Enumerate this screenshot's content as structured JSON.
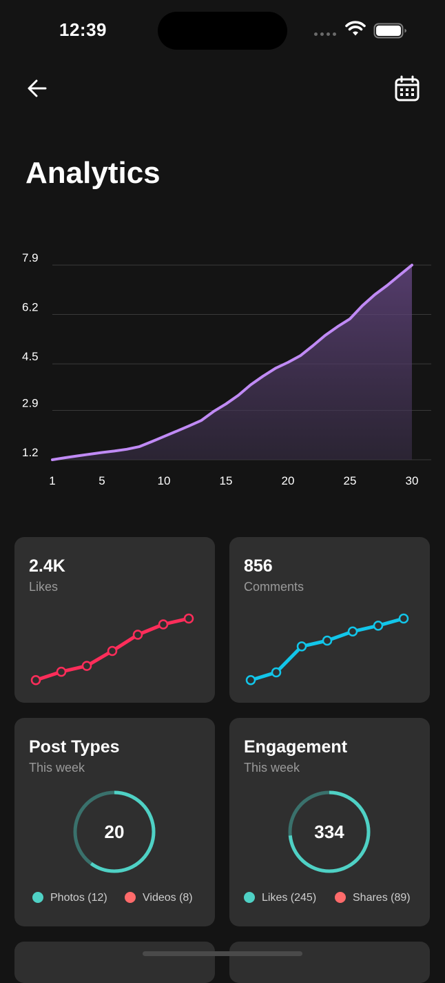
{
  "status_bar": {
    "time": "12:39"
  },
  "header": {
    "title": "Analytics"
  },
  "chart_data": {
    "type": "area",
    "x": [
      1,
      2,
      3,
      4,
      5,
      6,
      7,
      8,
      9,
      10,
      11,
      12,
      13,
      14,
      15,
      16,
      17,
      18,
      19,
      20,
      21,
      22,
      23,
      24,
      25,
      26,
      27,
      28,
      29,
      30
    ],
    "series": [
      {
        "values": [
          1.2,
          1.27,
          1.33,
          1.39,
          1.45,
          1.5,
          1.56,
          1.65,
          1.82,
          2.0,
          2.18,
          2.36,
          2.55,
          2.86,
          3.12,
          3.42,
          3.78,
          4.08,
          4.35,
          4.55,
          4.78,
          5.12,
          5.48,
          5.78,
          6.05,
          6.5,
          6.88,
          7.2,
          7.55,
          7.9
        ],
        "color": "#c08af5"
      }
    ],
    "yticks": [
      "1.2",
      "2.9",
      "4.5",
      "6.2",
      "7.9"
    ],
    "xticks": [
      "1",
      "5",
      "10",
      "15",
      "20",
      "25",
      "30"
    ],
    "ylim": [
      1.2,
      7.9
    ],
    "xlim": [
      1,
      30
    ],
    "grid": true
  },
  "cards": {
    "likes": {
      "value": "2.4K",
      "label": "Likes",
      "color": "#ff2d5a",
      "trend": [
        0.05,
        0.18,
        0.27,
        0.5,
        0.75,
        0.91,
        1.0
      ]
    },
    "comments": {
      "value": "856",
      "label": "Comments",
      "color": "#12c6ea",
      "trend": [
        0.05,
        0.17,
        0.57,
        0.66,
        0.8,
        0.89,
        1.0
      ]
    },
    "post_types": {
      "title": "Post Types",
      "subtitle": "This week",
      "total": "20",
      "ring_fraction": 0.6,
      "ring_color": "#4fd1c5",
      "track_color": "#3a716c",
      "legend": [
        {
          "label": "Photos (12)",
          "color": "#4fd1c5"
        },
        {
          "label": "Videos (8)",
          "color": "#ff6b6b"
        }
      ]
    },
    "engagement": {
      "title": "Engagement",
      "subtitle": "This week",
      "total": "334",
      "ring_fraction": 0.734,
      "ring_color": "#4fd1c5",
      "track_color": "#3a716c",
      "legend": [
        {
          "label": "Likes (245)",
          "color": "#4fd1c5"
        },
        {
          "label": "Shares (89)",
          "color": "#ff6b6b"
        }
      ]
    }
  },
  "colors": {
    "background": "#141414",
    "card": "#2f2f2f",
    "accent_line": "#c08af5"
  },
  "icons": {
    "back": "arrow-left-icon",
    "calendar": "calendar-icon"
  }
}
